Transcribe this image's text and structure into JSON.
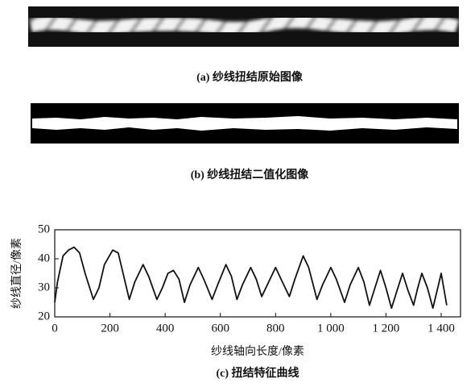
{
  "panel_a": {
    "caption": "(a) 纱线扭结原始图像"
  },
  "panel_b": {
    "caption": "(b) 纱线扭结二值化图像"
  },
  "chart_data": {
    "type": "line",
    "caption": "(c) 扭结特征曲线",
    "x_label": "纱线轴向长度/像素",
    "y_label": "纱线直径/像素",
    "color": "#111111",
    "x": [
      0,
      10,
      30,
      50,
      70,
      90,
      110,
      140,
      160,
      180,
      210,
      230,
      250,
      270,
      290,
      320,
      340,
      370,
      390,
      410,
      430,
      450,
      470,
      490,
      520,
      540,
      570,
      590,
      620,
      640,
      660,
      680,
      710,
      730,
      750,
      770,
      800,
      820,
      850,
      870,
      900,
      920,
      950,
      970,
      1000,
      1020,
      1050,
      1070,
      1100,
      1120,
      1140,
      1160,
      1180,
      1200,
      1220,
      1240,
      1260,
      1280,
      1300,
      1315,
      1330,
      1350,
      1370,
      1385,
      1400,
      1420
    ],
    "values": [
      25,
      32,
      41,
      43,
      44,
      42,
      35,
      26,
      30,
      38,
      43,
      42,
      34,
      26,
      32,
      38,
      34,
      26,
      30,
      35,
      36,
      33,
      25,
      31,
      37,
      33,
      26,
      31,
      38,
      34,
      26,
      31,
      37,
      33,
      27,
      31,
      37,
      33,
      27,
      33,
      41,
      37,
      26,
      31,
      37,
      33,
      25,
      31,
      37,
      32,
      24,
      30,
      36,
      30,
      23,
      29,
      35,
      29,
      24,
      30,
      35,
      30,
      23,
      29,
      35,
      24
    ],
    "xlim": [
      0,
      1470
    ],
    "xticks": [
      0,
      200,
      400,
      600,
      800,
      {
        "value": 1000,
        "label": "1 000"
      },
      {
        "value": 1200,
        "label": "1 200"
      },
      {
        "value": 1400,
        "label": "1 400"
      }
    ],
    "ylim": [
      20,
      50
    ],
    "yticks": [
      20,
      30,
      40,
      50
    ]
  }
}
